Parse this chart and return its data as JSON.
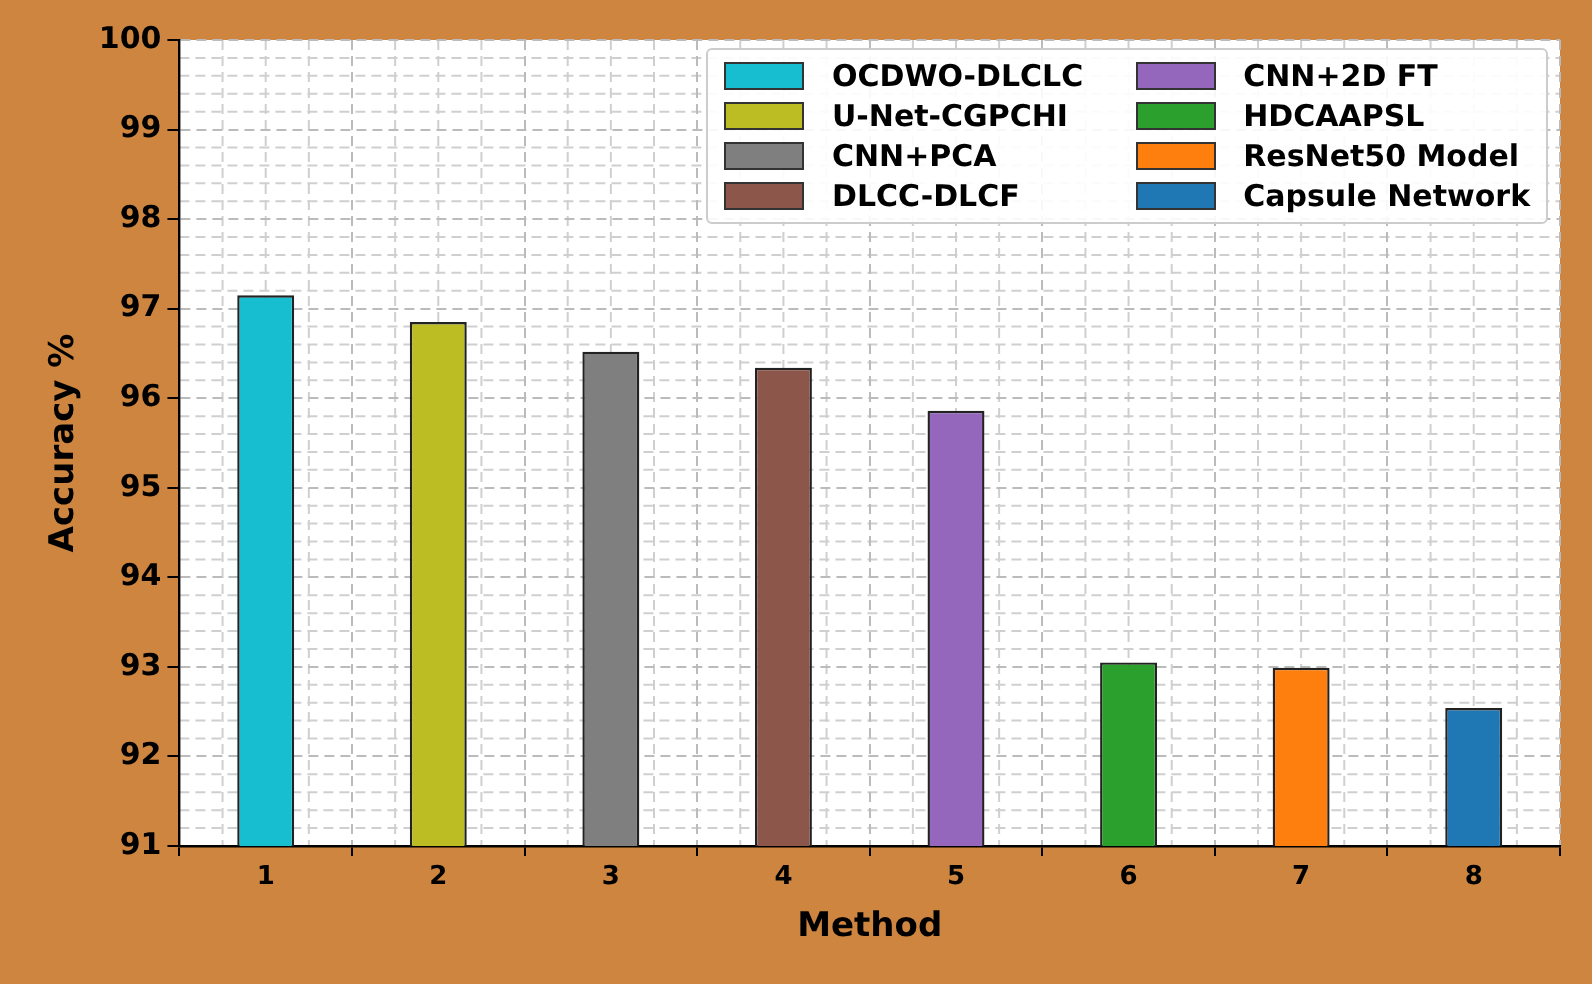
{
  "chart_data": {
    "type": "bar",
    "xlabel": "Method",
    "ylabel": "Accuracy %",
    "categories": [
      "1",
      "2",
      "3",
      "4",
      "5",
      "6",
      "7",
      "8"
    ],
    "series": [
      {
        "name": "OCDWO-DLCLC",
        "color": "#17becf",
        "values": [
          97.15,
          null,
          null,
          null,
          null,
          null,
          null,
          null
        ]
      },
      {
        "name": "U-Net-CGPCHI",
        "color": "#bcbd22",
        "values": [
          null,
          96.85,
          null,
          null,
          null,
          null,
          null,
          null
        ]
      },
      {
        "name": "CNN+PCA",
        "color": "#7f7f7f",
        "values": [
          null,
          null,
          96.52,
          null,
          null,
          null,
          null,
          null
        ]
      },
      {
        "name": "DLCC-DLCF",
        "color": "#8c564b",
        "values": [
          null,
          null,
          null,
          96.34,
          null,
          null,
          null,
          null
        ]
      },
      {
        "name": "CNN+2D FT",
        "color": "#9467bd",
        "values": [
          null,
          null,
          null,
          null,
          95.86,
          null,
          null,
          null
        ]
      },
      {
        "name": "HDCAAPSL",
        "color": "#2ca02c",
        "values": [
          null,
          null,
          null,
          null,
          null,
          93.05,
          null,
          null
        ]
      },
      {
        "name": "ResNet50 Model",
        "color": "#ff7f0e",
        "values": [
          null,
          null,
          null,
          null,
          null,
          null,
          92.99,
          null
        ]
      },
      {
        "name": "Capsule Network",
        "color": "#1f77b4",
        "values": [
          null,
          null,
          null,
          null,
          null,
          null,
          null,
          92.54
        ]
      }
    ],
    "ylim": [
      91,
      100
    ],
    "yticks": [
      91,
      92,
      93,
      94,
      95,
      96,
      97,
      98,
      99,
      100
    ],
    "grid": true,
    "legend": "top right"
  }
}
